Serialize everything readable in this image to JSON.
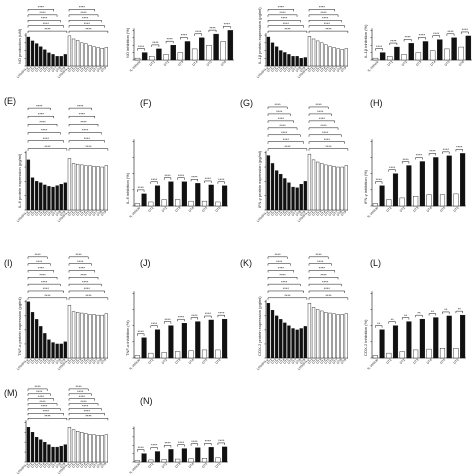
{
  "panels": [
    {
      "letter": "",
      "ylabel": "NO production (uM)",
      "kind": "two-group",
      "bars": [
        7.5,
        6.5,
        5.8,
        5,
        4.2,
        3.4,
        3,
        2.5,
        2.5,
        3,
        7.8,
        7,
        6.6,
        6,
        5.8,
        5.3,
        5,
        4.8,
        4.6,
        4.8
      ],
      "stars_top": "****",
      "stars_rows": 5
    },
    {
      "letter": "",
      "ylabel": "NO inhibition (%)",
      "kind": "inhibition",
      "bars": [
        0.5,
        2,
        1,
        3,
        1.5,
        4,
        2,
        5,
        3,
        6,
        4,
        7,
        5,
        8
      ],
      "stars_top": "****",
      "stars_rows": 1
    },
    {
      "letter": "",
      "ylabel": "IL-1β protein expression (pg/ml)",
      "kind": "two-group",
      "bars": [
        7.5,
        6,
        5,
        4,
        3.5,
        3,
        2.5,
        2.5,
        2,
        2.2,
        7.7,
        7,
        6.5,
        6,
        5.5,
        5,
        4.8,
        4.5,
        4.3,
        4.5
      ],
      "stars_top": "****",
      "stars_rows": 5
    },
    {
      "letter": "",
      "ylabel": "IL-1β inhibition (%)",
      "kind": "inhibition",
      "bars": [
        0.5,
        2,
        1,
        3.5,
        1.5,
        4.5,
        2,
        5,
        2.5,
        5.5,
        3,
        6,
        3.5,
        6.5
      ],
      "stars_top": "****",
      "stars_rows": 1
    },
    {
      "letter": "(E)",
      "ylabel": "IL-6 protein expression (pg/ml)",
      "kind": "two-group",
      "bars": [
        7,
        4.5,
        4,
        3.8,
        3.5,
        3.3,
        3.2,
        3.4,
        3.6,
        3.8,
        7.2,
        6.5,
        6.4,
        6.3,
        6.2,
        6.2,
        6.1,
        6.1,
        6,
        6.2
      ],
      "stars_top": "****",
      "stars_rows": 6
    },
    {
      "letter": "(F)",
      "ylabel": "IL-6 inhibition (%)",
      "kind": "inhibition",
      "bars": [
        0.3,
        1.5,
        0.5,
        2.5,
        0.8,
        3,
        0.8,
        3,
        0.6,
        2.8,
        0.6,
        2.6,
        0.5,
        2.5
      ],
      "stars_top": "****",
      "stars_rows": 1
    },
    {
      "letter": "(G)",
      "ylabel": "IFN-γ protein expression (pg/ml)",
      "kind": "two-group",
      "bars": [
        7.6,
        6.5,
        5.5,
        5,
        4.4,
        3.8,
        3.2,
        3.1,
        3.6,
        4,
        7.8,
        7,
        6.7,
        6.5,
        6.3,
        6.2,
        6.1,
        6,
        6,
        6.2
      ],
      "stars_top": "****",
      "stars_rows": 7
    },
    {
      "letter": "(H)",
      "ylabel": "IFN-γ inhibition (%)",
      "kind": "inhibition",
      "bars": [
        0.3,
        2.5,
        0.8,
        4,
        1,
        5,
        1.2,
        5.5,
        1.4,
        6,
        1.4,
        6.2,
        1.5,
        6.5
      ],
      "stars_top": "****",
      "stars_rows": 1
    },
    {
      "letter": "(I)",
      "ylabel": "TNF-α protein expression (pg/ml)",
      "kind": "two-group",
      "bars": [
        8,
        6.5,
        5.5,
        4.5,
        3.5,
        2.6,
        2.2,
        2,
        2,
        2.3,
        7.5,
        6.6,
        6.5,
        6.4,
        6.3,
        6.2,
        6.2,
        6.1,
        6.1,
        6.3
      ],
      "stars_top": "****",
      "stars_rows": 7
    },
    {
      "letter": "(J)",
      "ylabel": "TNF-α inhibition (%)",
      "kind": "inhibition",
      "bars": [
        0.3,
        2.5,
        0.6,
        3.5,
        0.7,
        4,
        0.8,
        4.3,
        0.9,
        4.5,
        1,
        4.7,
        1,
        4.8
      ],
      "stars_top": "****",
      "stars_rows": 1
    },
    {
      "letter": "(K)",
      "ylabel": "COX-2 protein expression (pg/ml)",
      "kind": "two-group",
      "bars": [
        7.8,
        6.8,
        6,
        5.5,
        5,
        4.6,
        4.2,
        4,
        4.2,
        4.5,
        7.8,
        7.2,
        6.9,
        6.7,
        6.5,
        6.4,
        6.3,
        6.2,
        6.2,
        6.3
      ],
      "stars_top": "****",
      "stars_rows": 7
    },
    {
      "letter": "(L)",
      "ylabel": "COX-2 inhibition (%)",
      "kind": "inhibition",
      "bars": [
        0.3,
        3.5,
        0.6,
        4,
        0.8,
        4.5,
        1,
        4.8,
        1.1,
        5,
        1.2,
        5.2,
        1.2,
        5.3
      ],
      "stars_top": "**",
      "stars_rows": 1
    },
    {
      "letter": "(M)",
      "ylabel": "",
      "kind": "two-group",
      "bars": [
        7,
        6,
        5,
        4.5,
        4,
        3.5,
        3,
        3,
        3.2,
        3.5,
        7,
        6.5,
        6.2,
        6,
        5.8,
        5.6,
        5.5,
        5.4,
        5.4,
        5.5
      ],
      "stars_top": "****",
      "stars_rows": 7
    },
    {
      "letter": "(N)",
      "ylabel": "",
      "kind": "inhibition",
      "bars": [
        0.3,
        2,
        0.5,
        2.5,
        0.6,
        3,
        0.7,
        3.2,
        0.8,
        3.4,
        0.9,
        3.5,
        1,
        3.6
      ],
      "stars_top": "****",
      "stars_rows": 1
    }
  ],
  "xticks_two_group": [
    "LPS/IFN-γ",
    "DT1",
    "DT2",
    "DT3",
    "DT4",
    "DT5",
    "DT6",
    "DT7",
    "DT8",
    "DT9"
  ],
  "xticks_inhibition": [
    "IL-Vehicle",
    "DT1",
    "DT2",
    "DT3",
    "DT4",
    "DT5",
    "DT6",
    "DT7"
  ],
  "colors": {
    "dark": "#111111",
    "light": "#ffffff",
    "stroke": "#111111"
  },
  "chart_data": [
    {
      "type": "bar",
      "title": "",
      "ylabel": "NO production (uM)",
      "series": [
        {
          "values": [
            7.5,
            6.5,
            5.8,
            5,
            4.2,
            3.4,
            3,
            2.5,
            2.5,
            3
          ]
        },
        {
          "values": [
            7.8,
            7,
            6.6,
            6,
            5.8,
            5.3,
            5,
            4.8,
            4.6,
            4.8
          ]
        }
      ]
    },
    {
      "type": "bar",
      "title": "",
      "ylabel": "IL-1β protein expression (pg/ml)",
      "series": [
        {
          "values": [
            7.5,
            6,
            5,
            4,
            3.5,
            3,
            2.5,
            2.5,
            2,
            2.2
          ]
        },
        {
          "values": [
            7.7,
            7,
            6.5,
            6,
            5.5,
            5,
            4.8,
            4.5,
            4.3,
            4.5
          ]
        }
      ]
    }
  ]
}
